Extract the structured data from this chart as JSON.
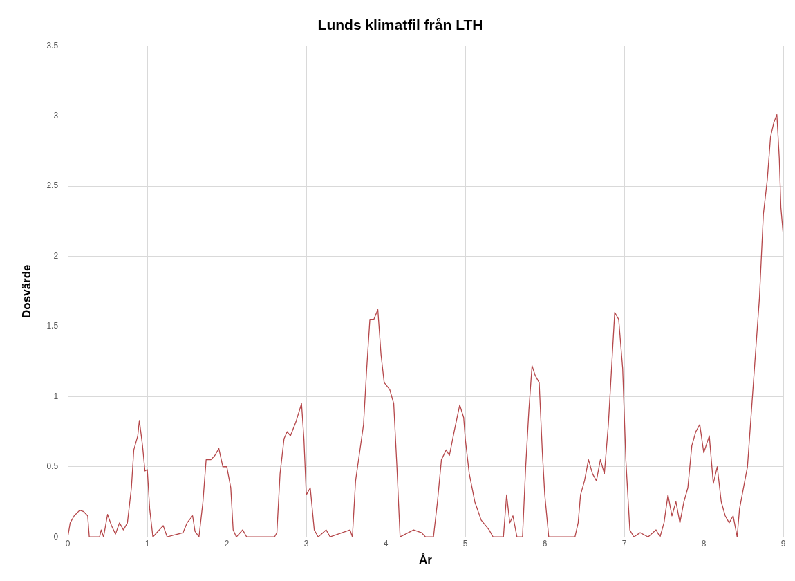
{
  "chart_data": {
    "type": "line",
    "title": "Lunds klimatfil från LTH",
    "xlabel": "År",
    "ylabel": "Dosvärde",
    "xlim": [
      0,
      9
    ],
    "xticks": [
      0,
      1,
      2,
      3,
      4,
      5,
      6,
      7,
      8,
      9
    ],
    "ylim": [
      0,
      3.5
    ],
    "yticks": [
      0,
      0.5,
      1,
      1.5,
      2,
      2.5,
      3,
      3.5
    ],
    "grid": true,
    "legend": false,
    "marker": "none",
    "series": [
      {
        "color": "#b5474a",
        "x": [
          0,
          0.03,
          0.08,
          0.15,
          0.2,
          0.25,
          0.27,
          0.4,
          0.42,
          0.45,
          0.5,
          0.55,
          0.6,
          0.65,
          0.7,
          0.75,
          0.8,
          0.83,
          0.88,
          0.9,
          0.94,
          0.97,
          1.0,
          1.03,
          1.07,
          1.2,
          1.25,
          1.45,
          1.5,
          1.57,
          1.6,
          1.65,
          1.7,
          1.74,
          1.8,
          1.85,
          1.9,
          1.95,
          2.0,
          2.05,
          2.08,
          2.12,
          2.2,
          2.25,
          2.6,
          2.63,
          2.67,
          2.72,
          2.76,
          2.8,
          2.87,
          2.94,
          2.97,
          3.0,
          3.05,
          3.1,
          3.15,
          3.25,
          3.3,
          3.55,
          3.58,
          3.62,
          3.67,
          3.72,
          3.76,
          3.8,
          3.85,
          3.9,
          3.94,
          3.98,
          4.05,
          4.1,
          4.14,
          4.18,
          4.35,
          4.45,
          4.5,
          4.6,
          4.65,
          4.7,
          4.76,
          4.8,
          4.86,
          4.93,
          4.98,
          5.0,
          5.05,
          5.12,
          5.2,
          5.3,
          5.35,
          5.48,
          5.52,
          5.56,
          5.6,
          5.65,
          5.72,
          5.76,
          5.8,
          5.84,
          5.88,
          5.93,
          5.97,
          6.0,
          6.05,
          6.38,
          6.42,
          6.45,
          6.5,
          6.55,
          6.6,
          6.65,
          6.7,
          6.75,
          6.8,
          6.85,
          6.88,
          6.93,
          6.98,
          7.02,
          7.07,
          7.12,
          7.2,
          7.3,
          7.4,
          7.45,
          7.5,
          7.55,
          7.6,
          7.65,
          7.7,
          7.75,
          7.8,
          7.85,
          7.9,
          7.95,
          8.0,
          8.07,
          8.12,
          8.17,
          8.22,
          8.27,
          8.32,
          8.37,
          8.42,
          8.45,
          8.5,
          8.55,
          8.6,
          8.65,
          8.7,
          8.75,
          8.8,
          8.84,
          8.88,
          8.92,
          8.95,
          8.97,
          9.0
        ],
        "values": [
          0,
          0.1,
          0.15,
          0.19,
          0.18,
          0.15,
          0,
          0,
          0.05,
          0,
          0.16,
          0.08,
          0.02,
          0.1,
          0.05,
          0.1,
          0.35,
          0.62,
          0.72,
          0.83,
          0.65,
          0.47,
          0.48,
          0.2,
          0,
          0.08,
          0,
          0.03,
          0.1,
          0.15,
          0.04,
          0,
          0.25,
          0.55,
          0.55,
          0.58,
          0.63,
          0.5,
          0.5,
          0.35,
          0.05,
          0,
          0.05,
          0,
          0,
          0.03,
          0.45,
          0.7,
          0.75,
          0.72,
          0.82,
          0.95,
          0.7,
          0.3,
          0.35,
          0.05,
          0,
          0.05,
          0,
          0.05,
          0,
          0.4,
          0.6,
          0.8,
          1.2,
          1.55,
          1.55,
          1.62,
          1.3,
          1.1,
          1.05,
          0.95,
          0.5,
          0,
          0.05,
          0.03,
          0,
          0,
          0.25,
          0.55,
          0.62,
          0.58,
          0.75,
          0.94,
          0.85,
          0.7,
          0.45,
          0.25,
          0.12,
          0.05,
          0,
          0,
          0.3,
          0.1,
          0.15,
          0,
          0,
          0.5,
          0.9,
          1.22,
          1.15,
          1.1,
          0.6,
          0.3,
          0,
          0,
          0.1,
          0.3,
          0.4,
          0.55,
          0.45,
          0.4,
          0.55,
          0.45,
          0.8,
          1.3,
          1.6,
          1.55,
          1.2,
          0.55,
          0.05,
          0,
          0.03,
          0,
          0.05,
          0,
          0.1,
          0.3,
          0.15,
          0.25,
          0.1,
          0.25,
          0.35,
          0.65,
          0.75,
          0.8,
          0.6,
          0.72,
          0.38,
          0.5,
          0.25,
          0.15,
          0.1,
          0.15,
          0,
          0.2,
          0.35,
          0.5,
          0.9,
          1.3,
          1.7,
          2.3,
          2.55,
          2.85,
          2.95,
          3.01,
          2.7,
          2.35,
          2.15
        ]
      }
    ]
  }
}
